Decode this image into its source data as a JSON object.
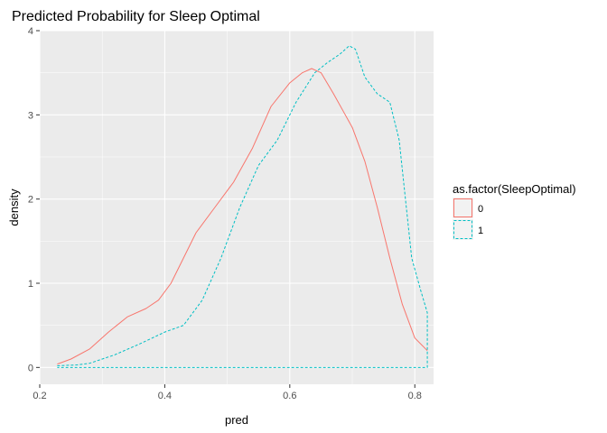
{
  "chart_data": {
    "type": "line",
    "title": "Predicted Probability for Sleep Optimal",
    "xlabel": "pred",
    "ylabel": "density",
    "xlim": [
      0.2,
      0.83
    ],
    "ylim": [
      -0.2,
      4.0
    ],
    "x_ticks": [
      0.2,
      0.4,
      0.6,
      0.8
    ],
    "x_tick_labels": [
      "0.2",
      "0.4",
      "0.6",
      "0.8"
    ],
    "y_ticks": [
      0,
      1,
      2,
      3,
      4
    ],
    "y_tick_labels": [
      "0",
      "1",
      "2",
      "3",
      "4"
    ],
    "background": "#ebebeb",
    "grid": true,
    "legend": {
      "title": "as.factor(SleepOptimal)",
      "position": "right"
    },
    "series": [
      {
        "name": "0",
        "color": "#F8766D",
        "dash": "solid",
        "points": [
          [
            0.228,
            0.04
          ],
          [
            0.25,
            0.1
          ],
          [
            0.28,
            0.22
          ],
          [
            0.31,
            0.42
          ],
          [
            0.34,
            0.6
          ],
          [
            0.37,
            0.7
          ],
          [
            0.39,
            0.8
          ],
          [
            0.41,
            1.0
          ],
          [
            0.43,
            1.3
          ],
          [
            0.45,
            1.6
          ],
          [
            0.48,
            1.9
          ],
          [
            0.51,
            2.2
          ],
          [
            0.54,
            2.6
          ],
          [
            0.57,
            3.1
          ],
          [
            0.6,
            3.38
          ],
          [
            0.62,
            3.5
          ],
          [
            0.635,
            3.55
          ],
          [
            0.65,
            3.5
          ],
          [
            0.67,
            3.25
          ],
          [
            0.7,
            2.85
          ],
          [
            0.72,
            2.45
          ],
          [
            0.74,
            1.9
          ],
          [
            0.76,
            1.3
          ],
          [
            0.78,
            0.75
          ],
          [
            0.8,
            0.35
          ],
          [
            0.82,
            0.2
          ]
        ]
      },
      {
        "name": "1",
        "color": "#00BFC4",
        "dash": "dashed",
        "points": [
          [
            0.228,
            0.02
          ],
          [
            0.26,
            0.03
          ],
          [
            0.28,
            0.05
          ],
          [
            0.32,
            0.15
          ],
          [
            0.36,
            0.28
          ],
          [
            0.4,
            0.42
          ],
          [
            0.43,
            0.5
          ],
          [
            0.46,
            0.8
          ],
          [
            0.49,
            1.3
          ],
          [
            0.52,
            1.9
          ],
          [
            0.55,
            2.4
          ],
          [
            0.58,
            2.7
          ],
          [
            0.61,
            3.15
          ],
          [
            0.64,
            3.5
          ],
          [
            0.66,
            3.62
          ],
          [
            0.68,
            3.72
          ],
          [
            0.695,
            3.82
          ],
          [
            0.705,
            3.78
          ],
          [
            0.72,
            3.45
          ],
          [
            0.74,
            3.25
          ],
          [
            0.76,
            3.15
          ],
          [
            0.775,
            2.7
          ],
          [
            0.785,
            2.0
          ],
          [
            0.795,
            1.3
          ],
          [
            0.81,
            0.9
          ],
          [
            0.82,
            0.65
          ],
          [
            0.82,
            0.0
          ],
          [
            0.228,
            0.0
          ]
        ]
      }
    ]
  }
}
